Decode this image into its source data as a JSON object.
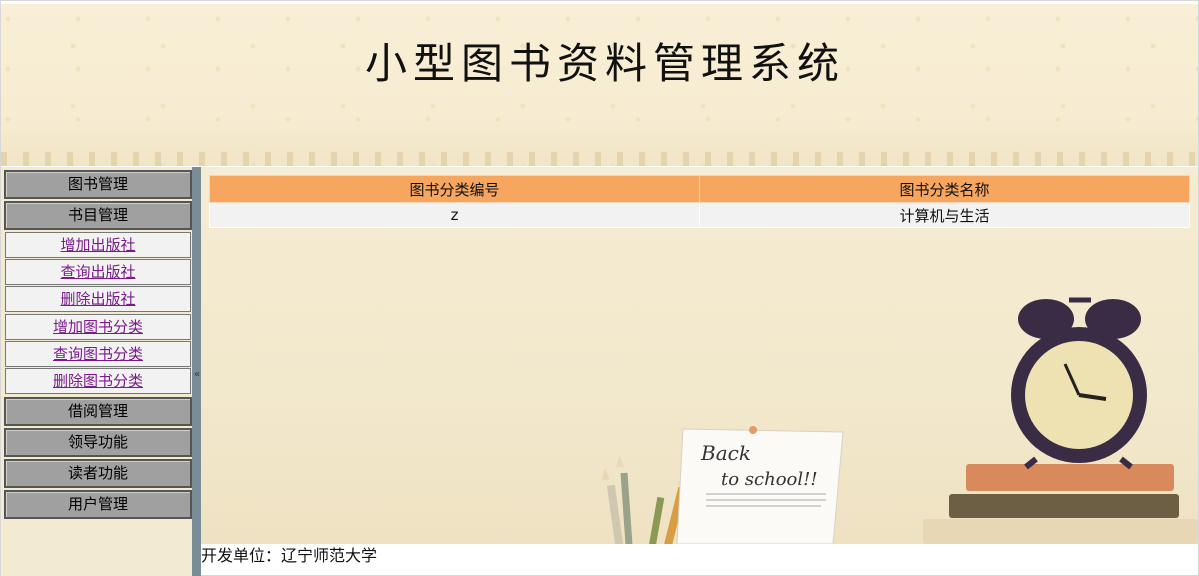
{
  "header": {
    "title": "小型图书资料管理系统"
  },
  "sidebar": {
    "groups": {
      "book_mgmt": "图书管理",
      "catalog_mgmt": "书目管理",
      "borrow_mgmt": "借阅管理",
      "leader_func": "领导功能",
      "reader_func": "读者功能",
      "user_mgmt": "用户管理"
    },
    "catalog_items": [
      "增加出版社",
      "查询出版社",
      "删除出版社",
      "增加图书分类",
      "查询图书分类",
      "删除图书分类"
    ],
    "collapse_glyph": "«"
  },
  "table": {
    "headers": [
      "图书分类编号",
      "图书分类名称"
    ],
    "rows": [
      [
        "z",
        "计算机与生活"
      ]
    ]
  },
  "footer": {
    "text": "开发单位：辽宁师范大学"
  },
  "colors": {
    "table_header": "#f7a65f",
    "sidebar_strip": "#7a8c95",
    "link": "#7a1a8c"
  }
}
